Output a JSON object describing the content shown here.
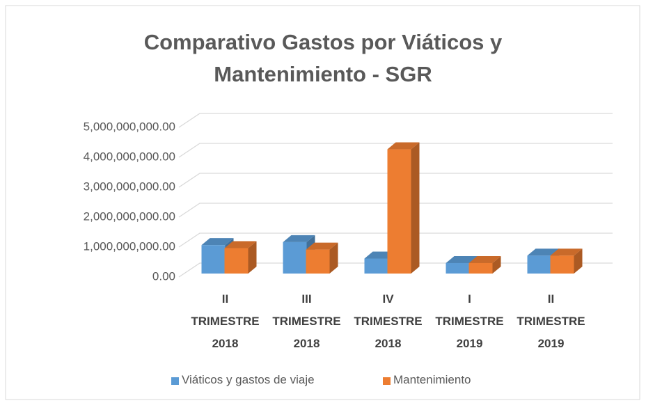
{
  "chart_data": {
    "type": "bar3d",
    "title": "Comparativo Gastos por Viáticos y\nMantenimiento - SGR",
    "categories": [
      "II\nTRIMESTRE\n2018",
      "III\nTRIMESTRE\n2018",
      "IV\nTRIMESTRE\n2018",
      "I\nTRIMESTRE\n2019",
      "II\nTRIMESTRE\n2019"
    ],
    "series": [
      {
        "name": "Viáticos y gastos de viaje",
        "color": "#5b9bd5",
        "values": [
          950000000,
          1050000000,
          500000000,
          350000000,
          600000000
        ]
      },
      {
        "name": "Mantenimiento",
        "color": "#ed7d31",
        "values": [
          850000000,
          800000000,
          4150000000,
          350000000,
          600000000
        ]
      }
    ],
    "ylim": [
      0,
      5000000000
    ],
    "yticks": [
      {
        "value": 0,
        "label": "0.00"
      },
      {
        "value": 1000000000,
        "label": "1,000,000,000.00"
      },
      {
        "value": 2000000000,
        "label": "2,000,000,000.00"
      },
      {
        "value": 3000000000,
        "label": "3,000,000,000.00"
      },
      {
        "value": 4000000000,
        "label": "4,000,000,000.00"
      },
      {
        "value": 5000000000,
        "label": "5,000,000,000.00"
      }
    ],
    "grid": true,
    "legend": "bottom"
  }
}
